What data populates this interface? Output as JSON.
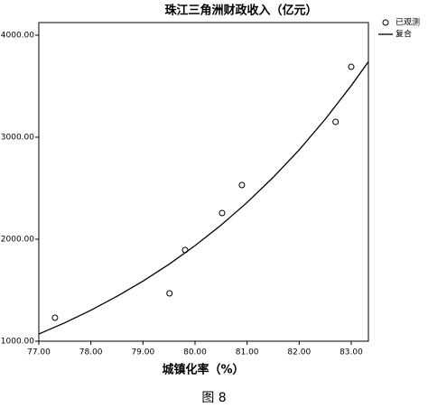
{
  "chart_data": {
    "type": "scatter",
    "title": "珠江三角洲财政收入（亿元）",
    "x_label": "城镇化率（%）",
    "caption": "图 8",
    "xlim": [
      77,
      83.33
    ],
    "ylim": [
      1000,
      4124
    ],
    "xticks": [
      {
        "value": 77,
        "label": "77.00"
      },
      {
        "value": 78,
        "label": "78.00"
      },
      {
        "value": 79,
        "label": "79.00"
      },
      {
        "value": 80,
        "label": "80.00"
      },
      {
        "value": 81,
        "label": "81.00"
      },
      {
        "value": 82,
        "label": "82.00"
      },
      {
        "value": 83,
        "label": "83.00"
      }
    ],
    "yticks": [
      {
        "value": 1000,
        "label": "1000.00"
      },
      {
        "value": 2000,
        "label": "2000.00"
      },
      {
        "value": 3000,
        "label": "3000.00"
      },
      {
        "value": 4000,
        "label": "4000.00"
      }
    ],
    "series": [
      {
        "name": "已观测",
        "type": "scatter",
        "color": "#000000",
        "x": [
          77.31,
          79.51,
          79.81,
          80.52,
          80.9,
          82.7,
          83.0
        ],
        "values": [
          1230,
          1469,
          1894,
          2257,
          2531,
          3150,
          3690
        ]
      },
      {
        "name": "复合",
        "type": "line",
        "color": "#000000",
        "x": [
          77,
          77.5,
          78,
          78.5,
          79,
          79.5,
          80,
          80.5,
          81,
          81.5,
          82,
          82.5,
          83,
          83.33
        ],
        "values": [
          1070,
          1181,
          1304,
          1440,
          1589,
          1754,
          1937,
          2138,
          2360,
          2606,
          2876,
          3176,
          3505,
          3740
        ]
      }
    ]
  }
}
